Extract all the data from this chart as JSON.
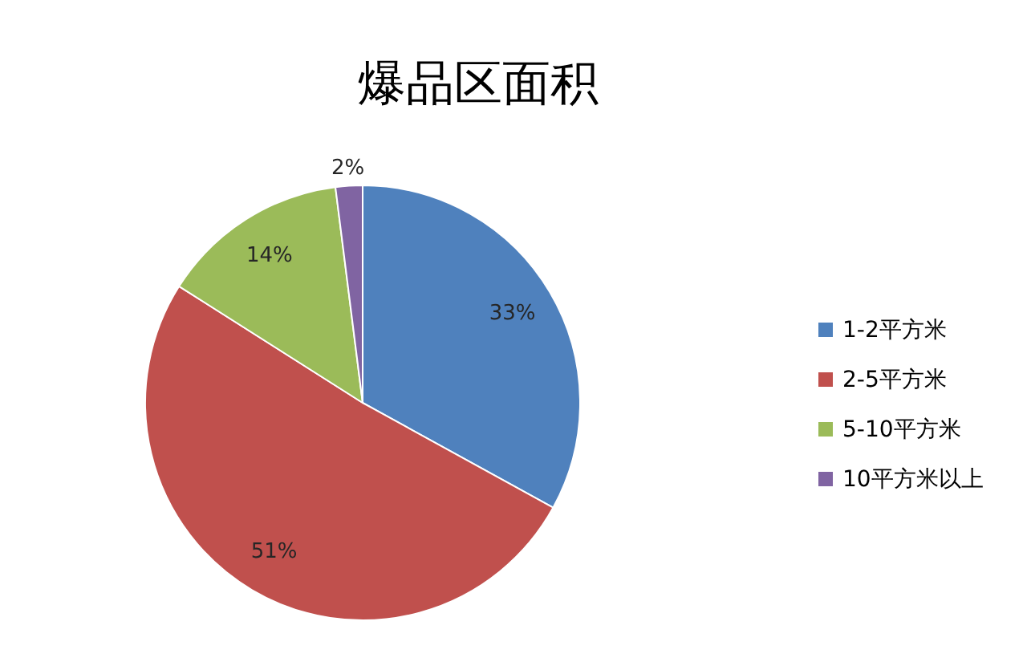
{
  "chart_data": {
    "type": "pie",
    "title": "爆品区面积",
    "categories": [
      "1-2平方米",
      "2-5平方米",
      "5-10平方米",
      "10平方米以上"
    ],
    "values": [
      33,
      51,
      14,
      2
    ],
    "colors": [
      "#4f81bd",
      "#c0504d",
      "#9bbb59",
      "#8064a2"
    ],
    "value_labels": [
      "33%",
      "51%",
      "14%",
      "2%"
    ],
    "legend": "right"
  }
}
